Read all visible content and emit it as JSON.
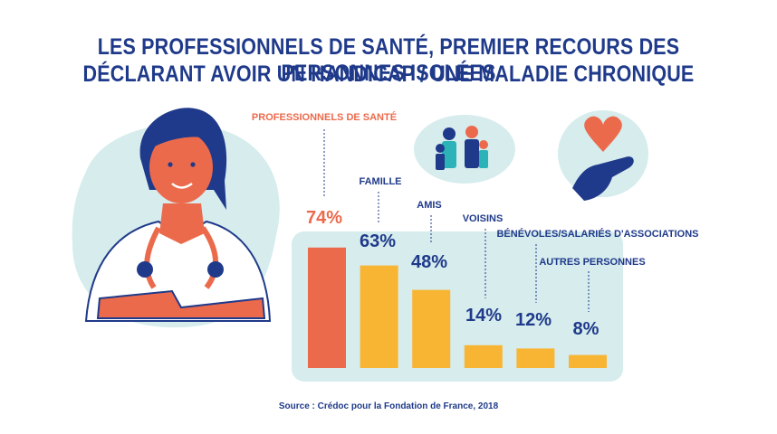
{
  "title_line1": "LES PROFESSIONNELS DE SANTÉ, PREMIER RECOURS DES PERSONNES ISOLÉES",
  "title_line2": "DÉCLARANT AVOIR UN HANDICAP / UNE MALADIE CHRONIQUE",
  "source": "Source : Crédoc pour la Fondation de France, 2018",
  "colors": {
    "highlight": "#ec6a4c",
    "bar": "#f8b534",
    "text": "#1f3a8a",
    "panel": "#d6eced"
  },
  "chart_data": {
    "type": "bar",
    "categories": [
      "PROFESSIONNELS DE SANTÉ",
      "FAMILLE",
      "AMIS",
      "VOISINS",
      "BÉNÉVOLES/SALARIÉS D'ASSOCIATIONS",
      "AUTRES PERSONNES"
    ],
    "values": [
      74,
      63,
      48,
      14,
      12,
      8
    ],
    "value_labels": [
      "74%",
      "63%",
      "48%",
      "14%",
      "12%",
      "8%"
    ],
    "unit": "%",
    "ylim": [
      0,
      100
    ],
    "highlight_index": 0,
    "grid": false
  }
}
